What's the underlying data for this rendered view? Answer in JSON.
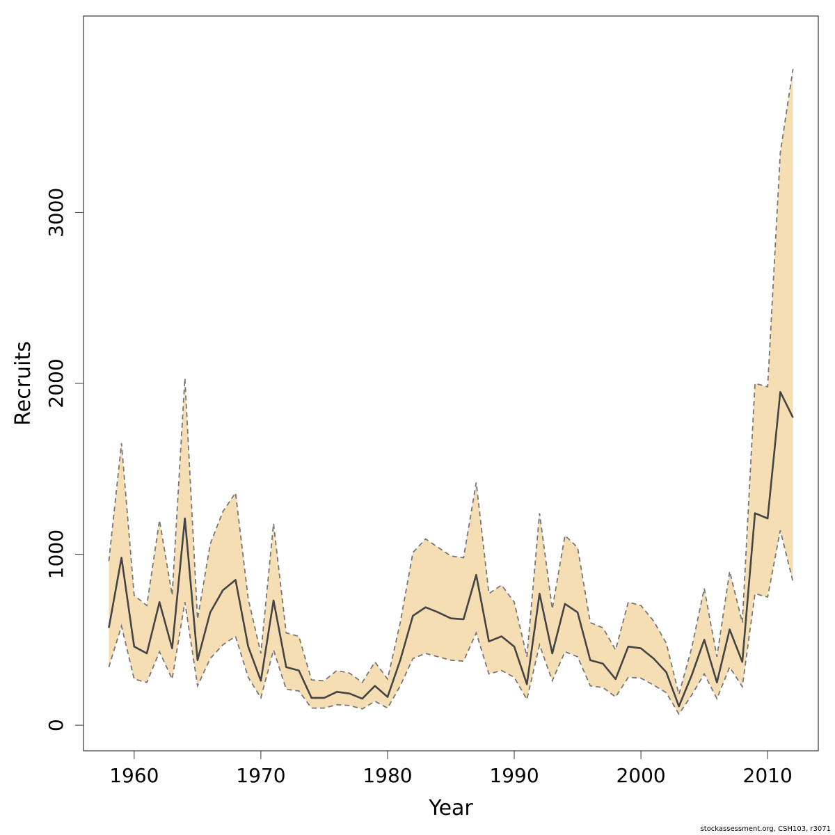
{
  "chart_data": {
    "type": "area",
    "title": "",
    "xlabel": "Year",
    "ylabel": "Recruits",
    "xlim": [
      1956,
      2014
    ],
    "ylim": [
      -150,
      4150
    ],
    "x_ticks": [
      1960,
      1970,
      1980,
      1990,
      2000,
      2010
    ],
    "y_ticks": [
      0,
      1000,
      2000,
      3000
    ],
    "band_color": "#f5deb3",
    "band_edge_color": "#777777",
    "line_color": "#444444",
    "grid": false,
    "x": [
      1958,
      1959,
      1960,
      1961,
      1962,
      1963,
      1964,
      1965,
      1966,
      1967,
      1968,
      1969,
      1970,
      1971,
      1972,
      1973,
      1974,
      1975,
      1976,
      1977,
      1978,
      1979,
      1980,
      1981,
      1982,
      1983,
      1984,
      1985,
      1986,
      1987,
      1988,
      1989,
      1990,
      1991,
      1992,
      1993,
      1994,
      1995,
      1996,
      1997,
      1998,
      1999,
      2000,
      2001,
      2002,
      2003,
      2004,
      2005,
      2006,
      2007,
      2008,
      2009,
      2010,
      2011,
      2012
    ],
    "series": [
      {
        "values": [
          570,
          980,
          460,
          420,
          720,
          450,
          1210,
          380,
          660,
          790,
          850,
          460,
          260,
          730,
          340,
          320,
          160,
          160,
          195,
          185,
          155,
          230,
          165,
          380,
          640,
          690,
          660,
          625,
          620,
          880,
          490,
          520,
          460,
          240,
          770,
          420,
          710,
          660,
          380,
          360,
          270,
          460,
          450,
          390,
          310,
          110,
          290,
          500,
          250,
          560,
          370,
          1240,
          1210,
          1950,
          1800
        ]
      }
    ],
    "upper": [
      960,
      1650,
      760,
      700,
      1200,
      760,
      2030,
      620,
      1060,
      1250,
      1360,
      740,
      420,
      1180,
      540,
      520,
      265,
      260,
      320,
      305,
      250,
      370,
      270,
      600,
      1010,
      1090,
      1040,
      990,
      980,
      1420,
      770,
      820,
      720,
      400,
      1240,
      680,
      1110,
      1040,
      600,
      570,
      440,
      720,
      700,
      610,
      480,
      180,
      450,
      800,
      400,
      900,
      600,
      2000,
      1980,
      3350,
      3840
    ],
    "lower": [
      340,
      580,
      270,
      250,
      430,
      270,
      720,
      230,
      390,
      470,
      520,
      280,
      160,
      440,
      210,
      200,
      100,
      100,
      120,
      115,
      95,
      140,
      100,
      230,
      390,
      420,
      400,
      380,
      375,
      540,
      300,
      320,
      280,
      150,
      470,
      260,
      430,
      400,
      230,
      220,
      165,
      280,
      275,
      235,
      190,
      65,
      175,
      300,
      155,
      340,
      225,
      770,
      750,
      1140,
      840
    ]
  },
  "footer": "stockassessment.org, CSH103, r3071"
}
